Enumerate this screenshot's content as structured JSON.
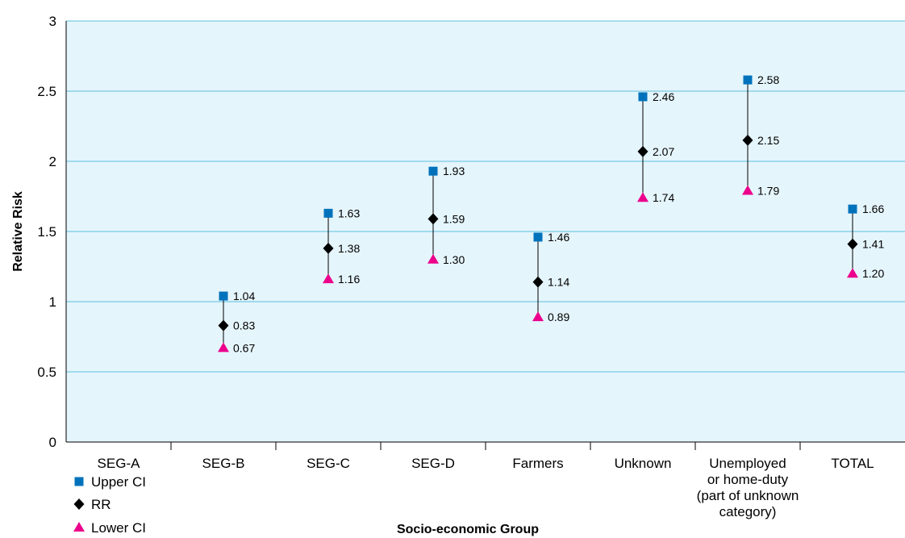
{
  "chart_data": {
    "type": "scatter",
    "title": "",
    "xlabel": "Socio-economic Group",
    "ylabel": "Relative Risk",
    "ylim": [
      0,
      3
    ],
    "yticks": [
      "0",
      "0.5",
      "1",
      "1.5",
      "2",
      "2.5",
      "3"
    ],
    "grid": true,
    "legend_position": "bottom-left",
    "categories": [
      [
        "SEG-A"
      ],
      [
        "SEG-B"
      ],
      [
        "SEG-C"
      ],
      [
        "SEG-D"
      ],
      [
        "Farmers"
      ],
      [
        "Unknown"
      ],
      [
        "Unemployed",
        "or home-duty",
        "(part of unknown",
        "category)"
      ],
      [
        "TOTAL"
      ]
    ],
    "series": [
      {
        "name": "Upper CI",
        "color": "#0072bc",
        "marker": "square",
        "values": [
          null,
          1.04,
          1.63,
          1.93,
          1.46,
          2.46,
          2.58,
          1.66
        ],
        "labels": [
          "",
          "1.04",
          "1.63",
          "1.93",
          "1.46",
          "2.46",
          "2.58",
          "1.66"
        ]
      },
      {
        "name": "RR",
        "color": "#000000",
        "marker": "diamond",
        "values": [
          null,
          0.83,
          1.38,
          1.59,
          1.14,
          2.07,
          2.15,
          1.41
        ],
        "labels": [
          "",
          "0.83",
          "1.38",
          "1.59",
          "1.14",
          "2.07",
          "2.15",
          "1.41"
        ]
      },
      {
        "name": "Lower CI",
        "color": "#ec008c",
        "marker": "triangle",
        "values": [
          null,
          0.67,
          1.16,
          1.3,
          0.89,
          1.74,
          1.79,
          1.2
        ],
        "labels": [
          "",
          "0.67",
          "1.16",
          "1.30",
          "0.89",
          "1.74",
          "1.79",
          "1.20"
        ]
      }
    ],
    "colors": {
      "plot_background": "#e5f5fc",
      "gridline": "#5bc0de",
      "axis": "#000000"
    }
  }
}
